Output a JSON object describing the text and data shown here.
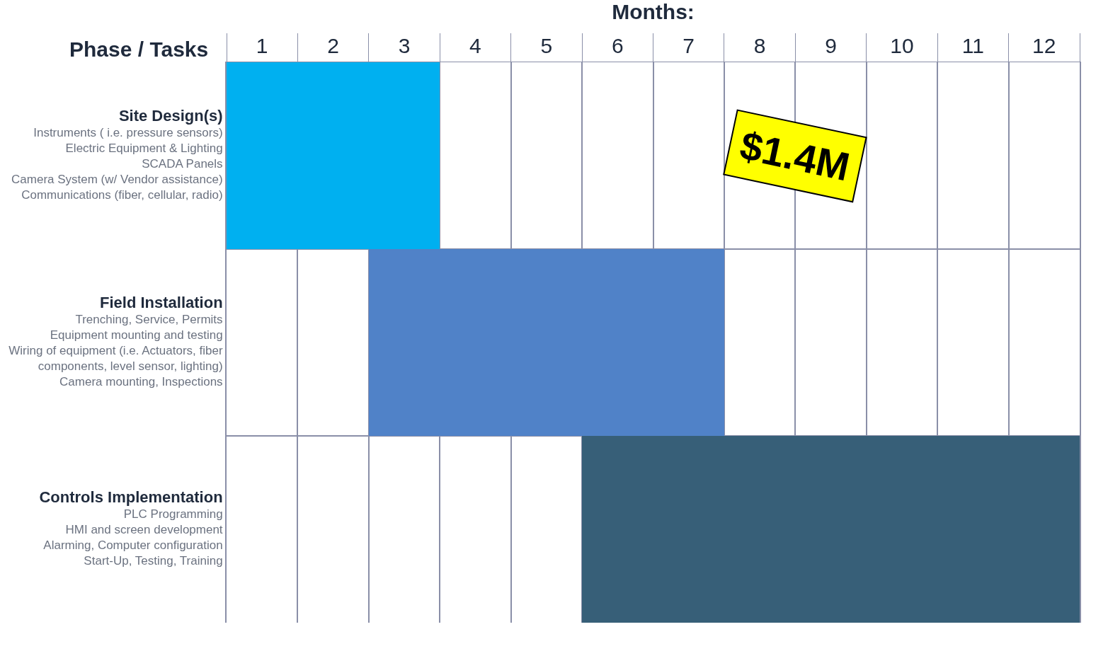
{
  "chart_data": {
    "type": "bar",
    "orientation": "horizontal",
    "xlabel": "Months:",
    "ylabel": "Phase / Tasks",
    "categories": [
      "Site Design(s)\nInstruments ( i.e. pressure sensors)\nElectric Equipment & Lighting\nSCADA Panels\nCamera System (w/ Vendor assistance)\nCommunications (fiber, cellular, radio)",
      "Field Installation\nTrenching, Service, Permits\nEquipment mounting and testing\nWiring of equipment (i.e. Actuators, fiber\ncomponents, level sensor, lighting)\nCamera mounting, Inspections",
      "Controls Implementation\nPLC Programming\nHMI and screen development\nAlarming, Computer configuration\nStart-Up, Testing, Training"
    ],
    "base": [
      0,
      2,
      5
    ],
    "values": [
      3,
      5,
      7
    ],
    "colors": [
      "#00b0f0",
      "#5082c8",
      "#375f78"
    ],
    "xlim": [
      0,
      12
    ],
    "xticks": [
      {
        "value": 0,
        "label": null
      },
      {
        "value": 0.5,
        "label": "1"
      },
      {
        "value": 1,
        "label": null
      },
      {
        "value": 1.5,
        "label": "2"
      },
      {
        "value": 2,
        "label": null
      },
      {
        "value": 2.5,
        "label": "3"
      },
      {
        "value": 3,
        "label": null
      },
      {
        "value": 3.5,
        "label": "4"
      },
      {
        "value": 4,
        "label": null
      },
      {
        "value": 4.5,
        "label": "5"
      },
      {
        "value": 5,
        "label": null
      },
      {
        "value": 5.5,
        "label": "6"
      },
      {
        "value": 6,
        "label": null
      },
      {
        "value": 6.5,
        "label": "7"
      },
      {
        "value": 7,
        "label": null
      },
      {
        "value": 7.5,
        "label": "8"
      },
      {
        "value": 8,
        "label": null
      },
      {
        "value": 8.5,
        "label": "9"
      },
      {
        "value": 9,
        "label": null
      },
      {
        "value": 9.5,
        "label": "10"
      },
      {
        "value": 10,
        "label": null
      },
      {
        "value": 10.5,
        "label": "11"
      },
      {
        "value": 11,
        "label": null
      },
      {
        "value": 11.5,
        "label": "12"
      },
      {
        "value": 12,
        "label": null
      }
    ],
    "grid": true,
    "annotations": [
      "$1.4M"
    ]
  }
}
